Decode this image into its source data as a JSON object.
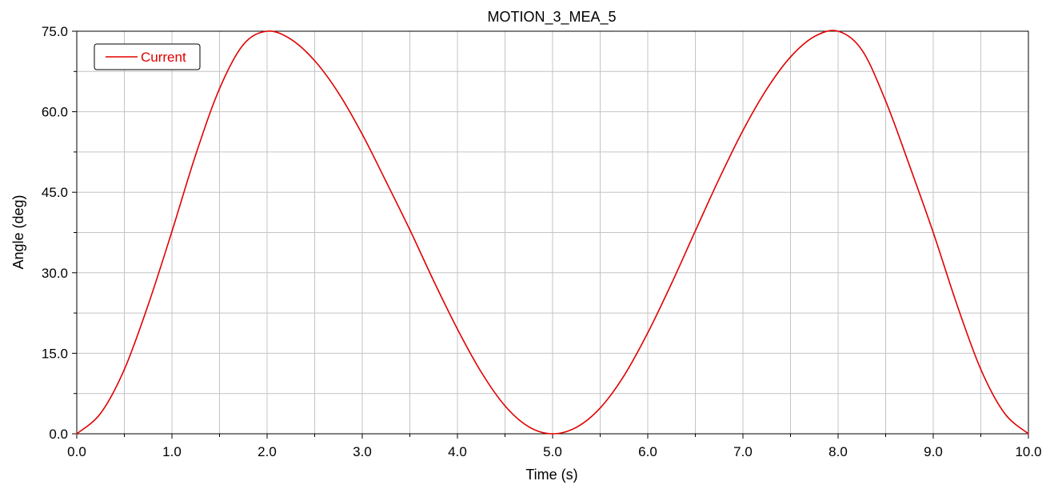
{
  "chart_data": {
    "type": "line",
    "title": "MOTION_3_MEA_5",
    "xlabel": "Time (s)",
    "ylabel": "Angle (deg)",
    "xlim": [
      0,
      10
    ],
    "ylim": [
      0,
      75
    ],
    "x_ticks": [
      "0.0",
      "1.0",
      "2.0",
      "3.0",
      "4.0",
      "5.0",
      "6.0",
      "7.0",
      "8.0",
      "9.0",
      "10.0"
    ],
    "y_ticks": [
      "0.0",
      "15.0",
      "30.0",
      "45.0",
      "60.0",
      "75.0"
    ],
    "grid": true,
    "legend_position": "top-left",
    "series": [
      {
        "name": "Current",
        "color": "#e00000",
        "x": [
          0,
          0.25,
          0.5,
          0.75,
          1.0,
          1.25,
          1.5,
          1.75,
          2.0,
          2.25,
          2.5,
          2.75,
          3.0,
          3.25,
          3.5,
          3.75,
          4.0,
          4.25,
          4.5,
          4.75,
          5.0,
          5.25,
          5.5,
          5.75,
          6.0,
          6.25,
          6.5,
          6.75,
          7.0,
          7.25,
          7.5,
          7.75,
          8.0,
          8.25,
          8.5,
          8.75,
          9.0,
          9.25,
          9.5,
          9.75,
          10.0
        ],
        "y": [
          0.0,
          3.8,
          12.0,
          24.0,
          37.7,
          52.0,
          64.3,
          72.5,
          75.0,
          73.5,
          69.5,
          63.5,
          55.8,
          47.0,
          38.0,
          28.5,
          19.5,
          11.5,
          5.2,
          1.3,
          0.0,
          1.2,
          4.8,
          10.8,
          18.8,
          28.0,
          37.8,
          47.5,
          56.5,
          64.2,
          70.2,
          74.0,
          75.0,
          71.5,
          62.0,
          50.0,
          37.5,
          24.0,
          12.0,
          3.8,
          0.0
        ]
      }
    ]
  }
}
